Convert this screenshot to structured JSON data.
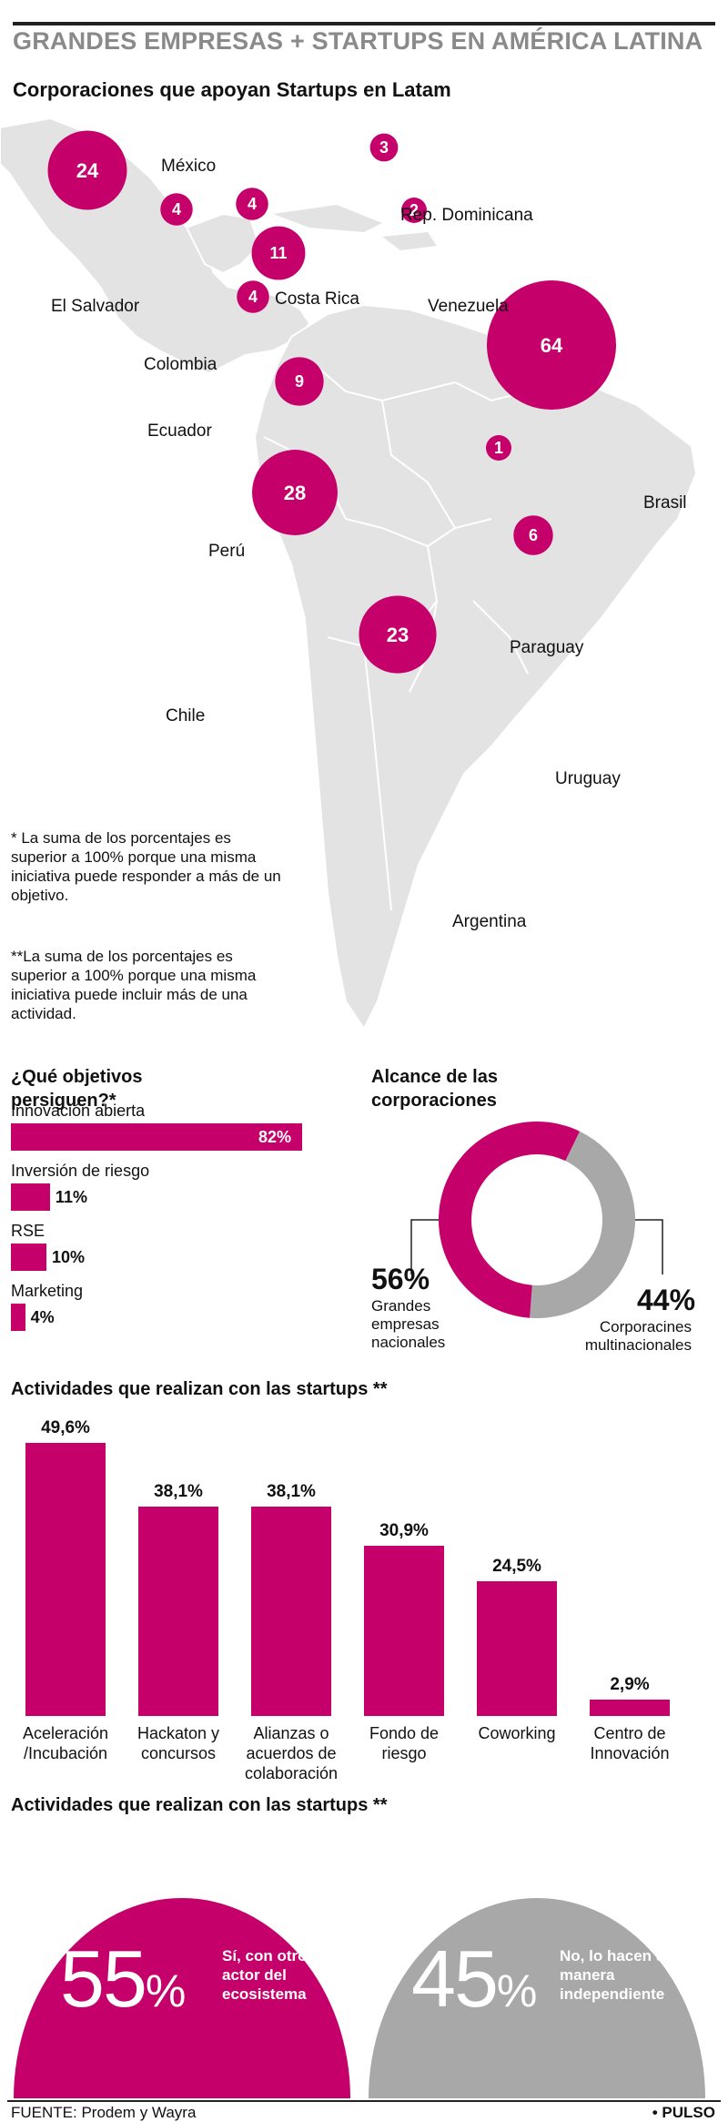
{
  "header": {
    "title": "GRANDES EMPRESAS + STARTUPS EN AMÉRICA LATINA",
    "map_subtitle": "Corporaciones que apoyan Startups en Latam"
  },
  "colors": {
    "accent": "#c5006b",
    "gray": "#a8a8a8",
    "map_land": "#e3e3e3",
    "map_border": "#ffffff"
  },
  "notes": {
    "objectives_note": "* La suma de los porcentajes es superior a 100% porque una misma iniciativa puede responder a más de un objetivo.",
    "activities_note": "**La suma de los porcentajes es superior a 100% porque una misma iniciativa puede incluir más de una actividad."
  },
  "sections": {
    "objectives_title": "¿Qué objetivos persiguen?*",
    "reach_title": "Alcance de las corporaciones",
    "activities_title": "Actividades que realizan con las startups **",
    "activities_title_2": "Actividades que realizan con las startups **"
  },
  "chart_data": [
    {
      "type": "bubble-map",
      "title": "Corporaciones que apoyan Startups en Latam",
      "categories": [
        "México",
        "Rep. Dominicana",
        "El Salvador",
        "Costa Rica",
        "Venezuela",
        "Colombia",
        "Ecuador",
        "Brasil",
        "Perú",
        "Paraguay",
        "Chile",
        "Uruguay",
        "Argentina"
      ],
      "values": [
        24,
        3,
        4,
        4,
        2,
        11,
        4,
        64,
        9,
        1,
        28,
        6,
        23
      ]
    },
    {
      "type": "bar",
      "orientation": "horizontal",
      "title": "¿Qué objetivos persiguen?*",
      "categories": [
        "Innovación abierta",
        "Inversión de riesgo",
        "RSE",
        "Marketing"
      ],
      "values": [
        82,
        11,
        10,
        4
      ],
      "labels": [
        "82%",
        "11%",
        "10%",
        "4%"
      ]
    },
    {
      "type": "pie",
      "title": "Alcance de las corporaciones",
      "categories": [
        "Grandes empresas nacionales",
        "Corporacines multinacionales"
      ],
      "values": [
        56,
        44
      ],
      "labels": [
        "56%",
        "44%"
      ]
    },
    {
      "type": "bar",
      "title": "Actividades que realizan con las startups **",
      "categories": [
        "Aceleración /Incubación",
        "Hackaton y concursos",
        "Alianzas o acuerdos de colaboración",
        "Fondo de riesgo",
        "Coworking",
        "Centro de Innovación"
      ],
      "values": [
        49.6,
        38.1,
        38.1,
        30.9,
        24.5,
        2.9
      ],
      "labels": [
        "49,6%",
        "38,1%",
        "38,1%",
        "30,9%",
        "24,5%",
        "2,9%"
      ]
    },
    {
      "type": "pie",
      "title": "Actividades que realizan con las startups **",
      "categories": [
        "Sí, con otro actor del ecosistema",
        "No, lo hacen de manera independiente"
      ],
      "values": [
        55,
        45
      ],
      "labels": [
        "55",
        "45"
      ],
      "unit": "%"
    }
  ],
  "footer": {
    "source": "FUENTE: Prodem y Wayra",
    "brand": "• PULSO"
  }
}
